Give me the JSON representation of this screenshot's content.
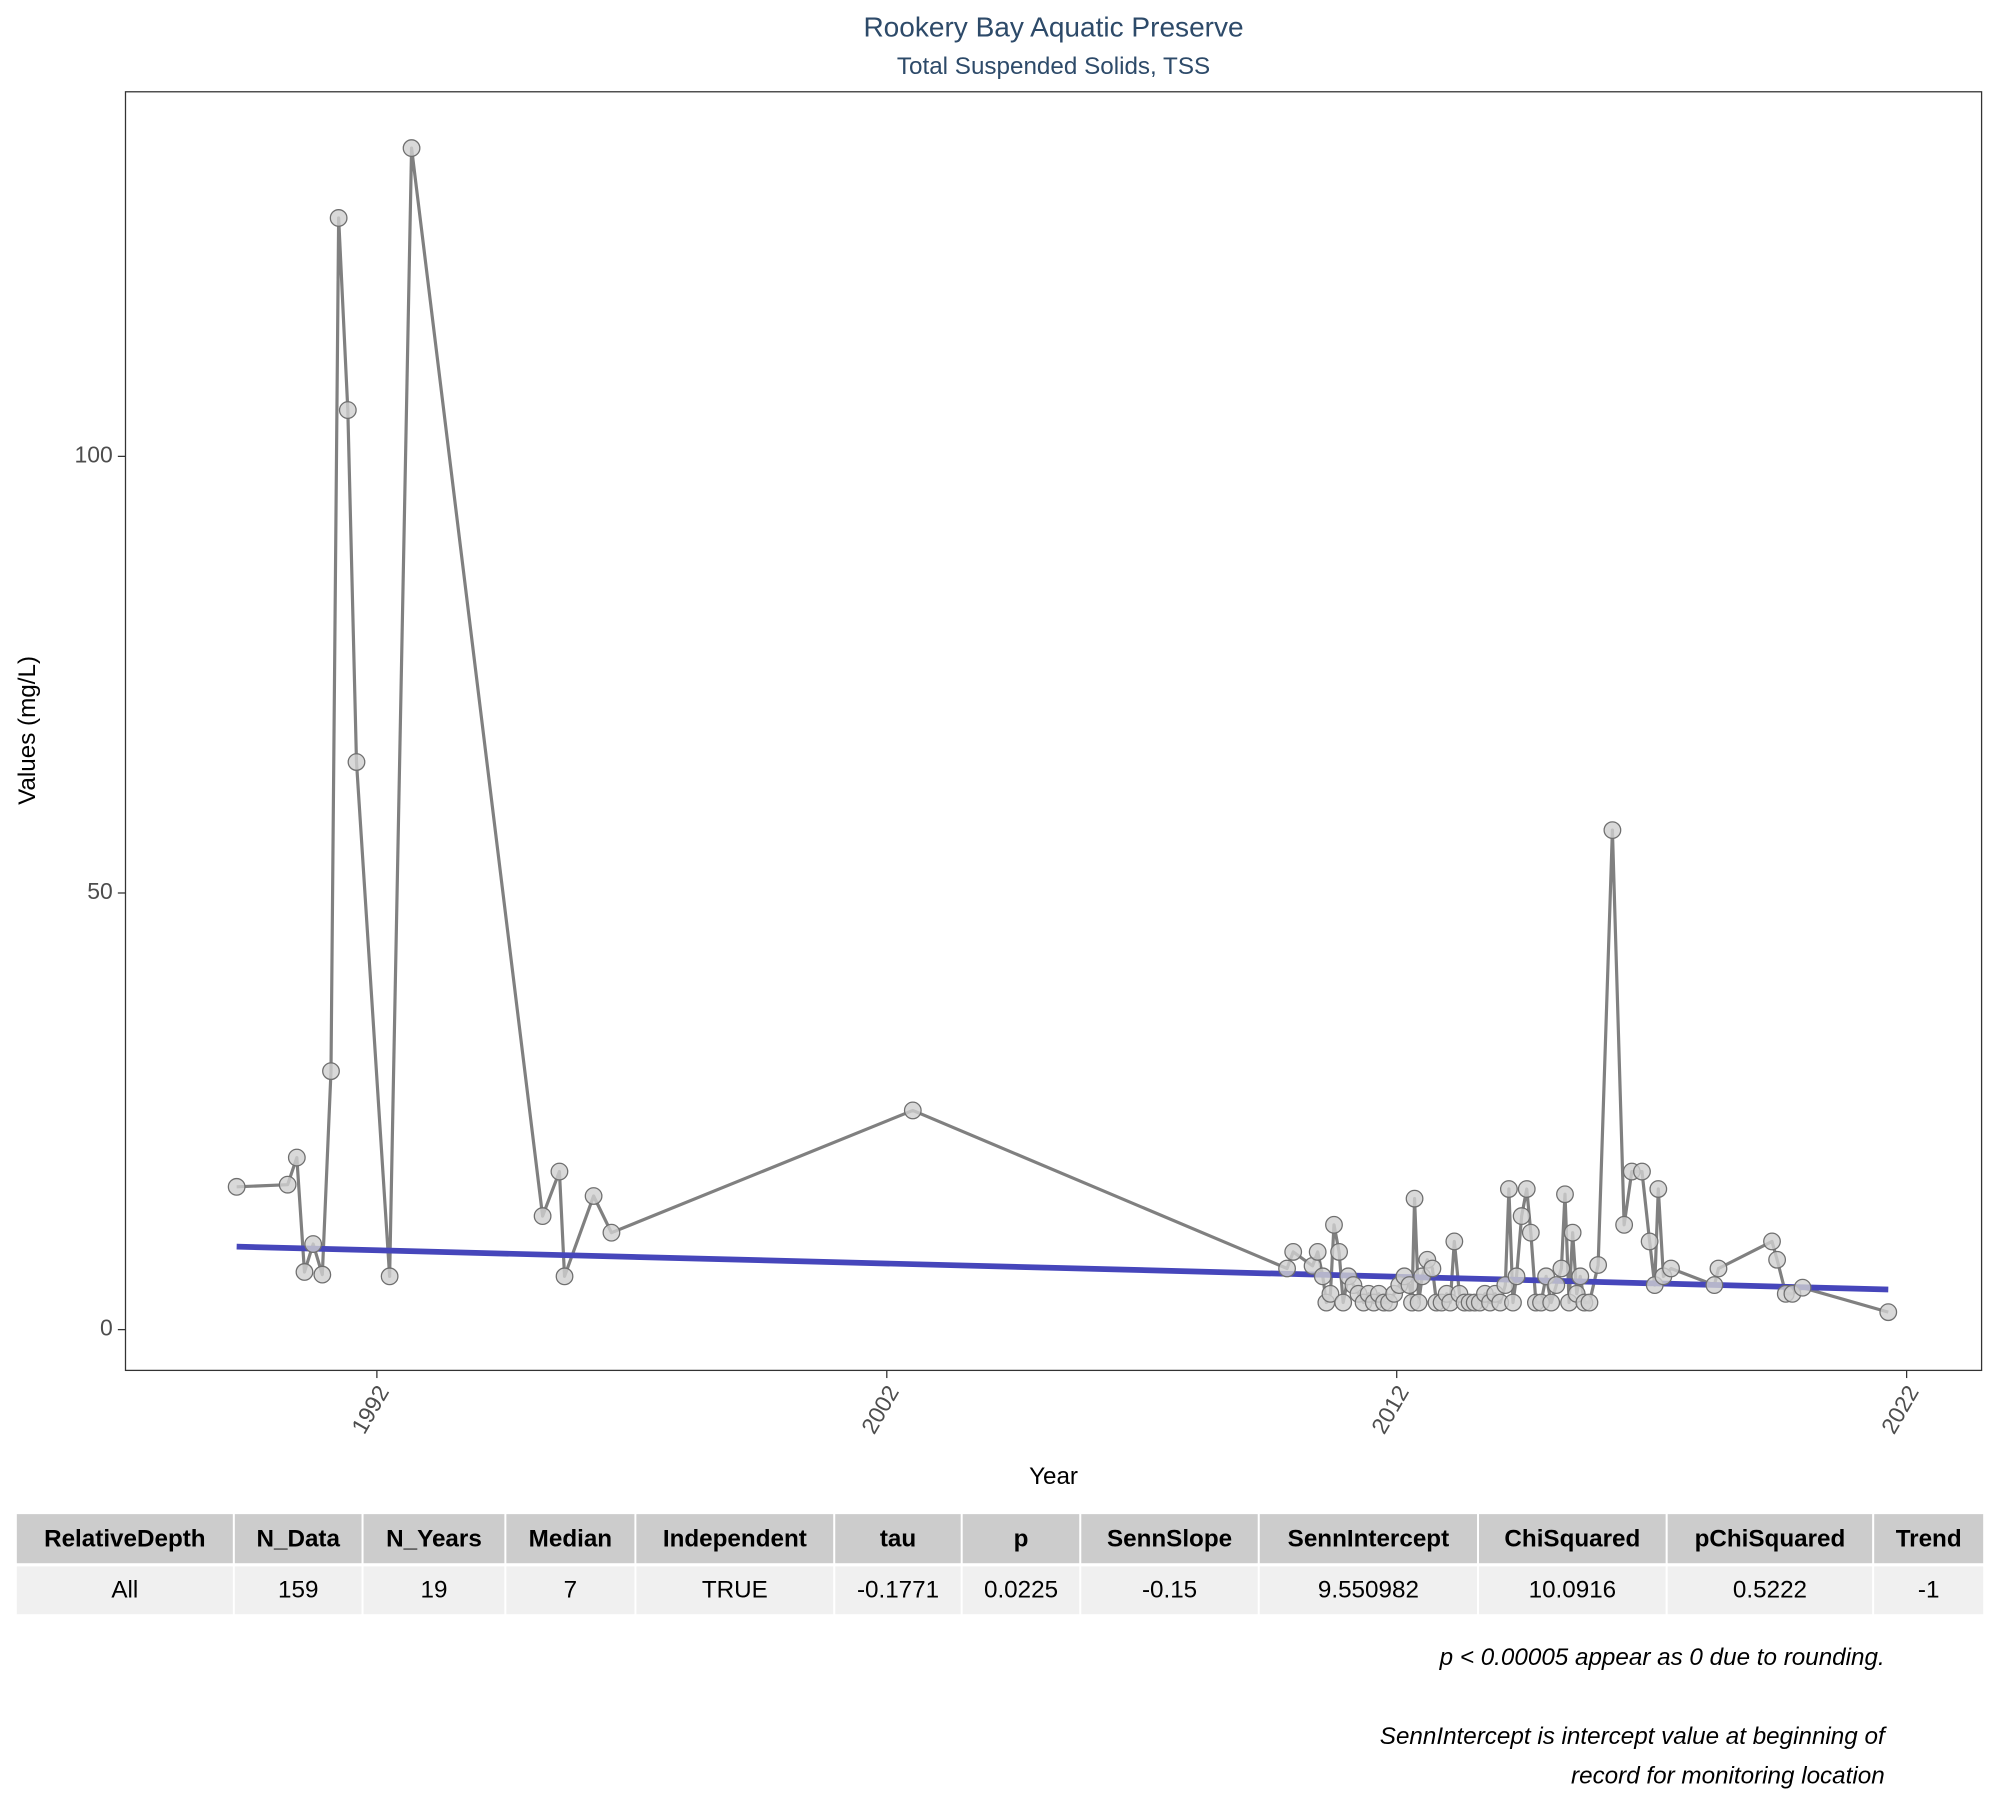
{
  "chart_data": {
    "type": "line",
    "title": "Rookery Bay Aquatic Preserve",
    "subtitle": "Total Suspended Solids, TSS",
    "x_label": "Year",
    "y_label": "Values (mg/L)",
    "x": [
      1989.25,
      1990.25,
      1990.43,
      1990.58,
      1990.75,
      1990.93,
      1991.1,
      1991.25,
      1991.43,
      1991.6,
      1992.25,
      1992.68,
      1995.25,
      1995.58,
      1995.68,
      1996.25,
      1996.6,
      2002.51,
      2009.85,
      2009.97,
      2010.35,
      2010.45,
      2010.55,
      2010.62,
      2010.7,
      2010.77,
      2010.87,
      2010.95,
      2011.05,
      2011.15,
      2011.25,
      2011.35,
      2011.45,
      2011.55,
      2011.65,
      2011.75,
      2011.85,
      2011.95,
      2012.05,
      2012.15,
      2012.25,
      2012.3,
      2012.35,
      2012.43,
      2012.5,
      2012.6,
      2012.7,
      2012.78,
      2012.88,
      2012.98,
      2013.05,
      2013.13,
      2013.23,
      2013.33,
      2013.43,
      2013.53,
      2013.63,
      2013.73,
      2013.83,
      2013.93,
      2014.03,
      2014.13,
      2014.2,
      2014.28,
      2014.35,
      2014.45,
      2014.55,
      2014.63,
      2014.73,
      2014.83,
      2014.93,
      2015.03,
      2015.13,
      2015.23,
      2015.3,
      2015.38,
      2015.45,
      2015.53,
      2015.6,
      2015.68,
      2015.78,
      2015.95,
      2016.23,
      2016.46,
      2016.61,
      2016.81,
      2016.96,
      2017.06,
      2017.13,
      2017.23,
      2017.38,
      2018.23,
      2018.31,
      2019.36,
      2019.46,
      2019.63,
      2019.76,
      2019.96,
      2021.64
    ],
    "series": [
      {
        "color": "#808080",
        "values": [
          16.35,
          16.6,
          19.7,
          6.6,
          9.8,
          6.3,
          29.6,
          127.3,
          105.3,
          65.0,
          6.1,
          135.3,
          13.0,
          18.1,
          6.1,
          15.3,
          11.1,
          25.1,
          7.0,
          8.9,
          7.3,
          8.9,
          6.1,
          3.1,
          4.1,
          12.0,
          8.9,
          3.1,
          6.1,
          5.1,
          4.1,
          3.1,
          4.1,
          3.1,
          4.1,
          3.1,
          3.1,
          4.1,
          5.1,
          6.1,
          5.1,
          3.1,
          15.0,
          3.1,
          6.1,
          8.0,
          7.0,
          3.1,
          3.1,
          4.1,
          3.1,
          10.1,
          4.1,
          3.1,
          3.1,
          3.1,
          3.1,
          4.1,
          3.1,
          4.1,
          3.1,
          5.1,
          16.1,
          3.1,
          6.1,
          13.0,
          16.1,
          11.1,
          3.1,
          3.1,
          6.1,
          3.1,
          5.1,
          7.0,
          15.5,
          3.1,
          11.1,
          4.1,
          6.1,
          3.1,
          3.1,
          7.4,
          57.2,
          12.0,
          18.1,
          18.1,
          10.1,
          5.1,
          16.1,
          6.1,
          7.0,
          5.1,
          7.0,
          10.1,
          8.0,
          4.1,
          4.1,
          4.8,
          2.0
        ]
      }
    ],
    "trend": {
      "color": "#4646bb",
      "x": [
        1989.25,
        2021.64
      ],
      "values": [
        9.5,
        4.6
      ]
    },
    "xlim": [
      1987.07,
      2023.47
    ],
    "ylim": [
      -4.67,
      141.75
    ],
    "xticks": [
      1992,
      2002,
      2012,
      2022
    ],
    "yticks": [
      0,
      50,
      100
    ]
  },
  "table": {
    "columns": [
      "RelativeDepth",
      "N_Data",
      "N_Years",
      "Median",
      "Independent",
      "tau",
      "p",
      "SennSlope",
      "SennIntercept",
      "ChiSquared",
      "pChiSquared",
      "Trend"
    ],
    "rows": [
      [
        "All",
        159,
        19,
        7,
        "TRUE",
        -0.1771,
        0.0225,
        -0.15,
        9.550982,
        10.0916,
        0.5222,
        -1
      ]
    ]
  },
  "notes": [
    "p < 0.00005 appear as 0 due to rounding.",
    "SennIntercept is intercept value at beginning of",
    "record for monitoring location"
  ]
}
